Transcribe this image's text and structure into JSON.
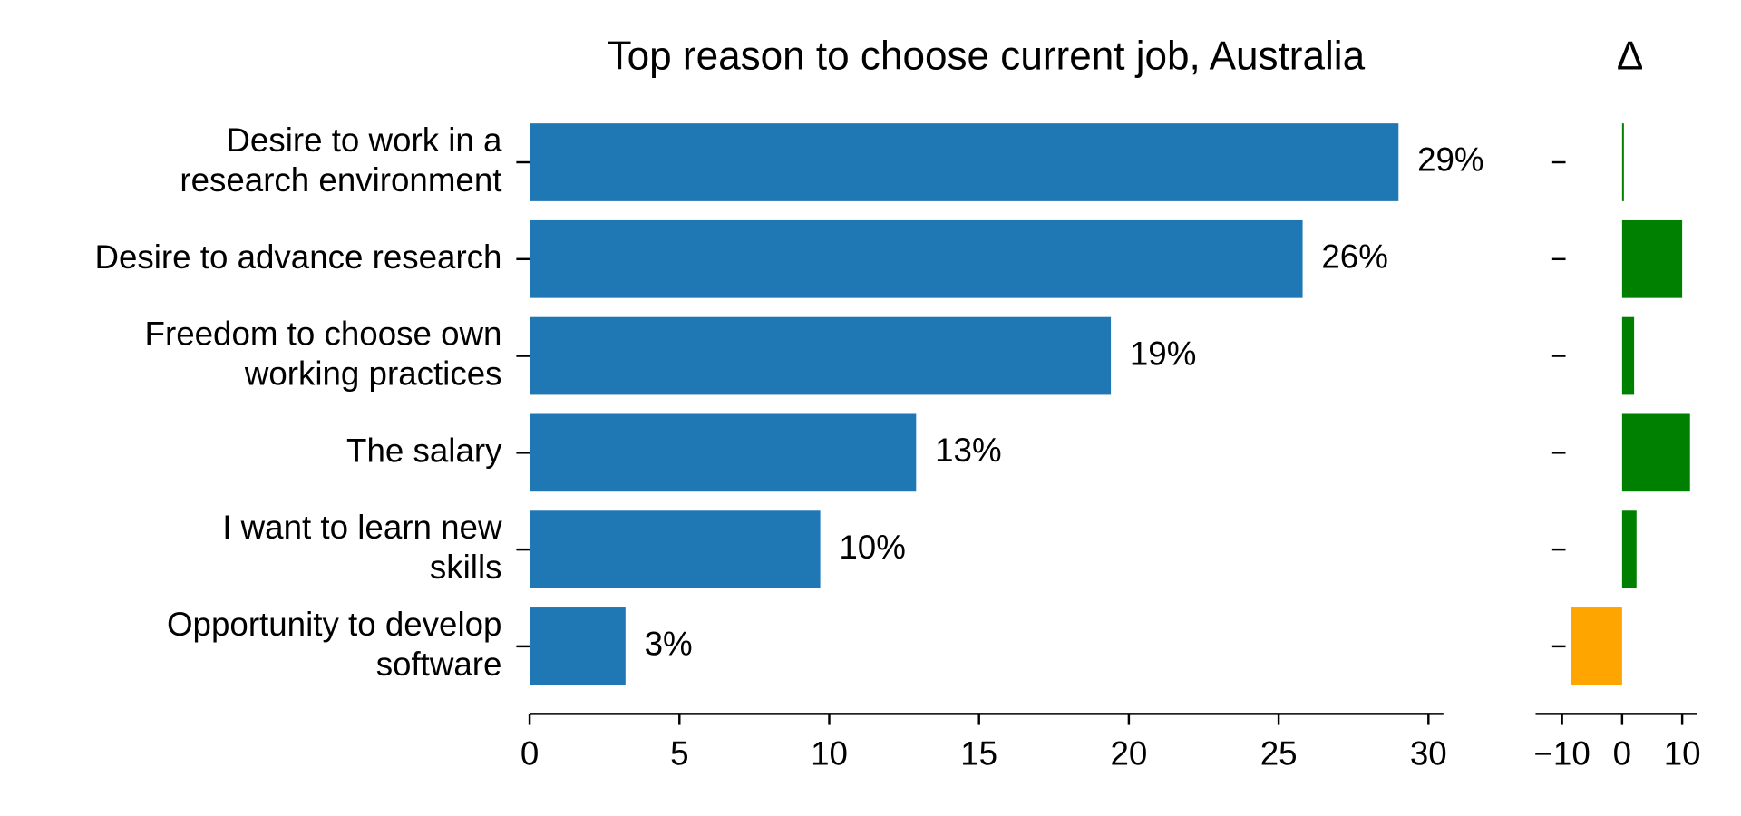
{
  "chart_data": [
    {
      "type": "bar",
      "orientation": "horizontal",
      "title": "Top reason to choose current job, Australia",
      "categories": [
        "Desire to work in a\nresearch environment",
        "Desire to advance research",
        "Freedom to choose own\nworking practices",
        "The salary",
        "I want to learn new\nskills",
        "Opportunity to develop\nsoftware"
      ],
      "values": [
        29.0,
        25.8,
        19.4,
        12.9,
        9.7,
        3.2
      ],
      "value_labels": [
        "29%",
        "26%",
        "19%",
        "13%",
        "10%",
        "3%"
      ],
      "color": "#1f77b4",
      "xlim": [
        0,
        30.5
      ],
      "xticks": [
        0,
        5,
        10,
        15,
        20,
        25,
        30
      ]
    },
    {
      "type": "bar",
      "orientation": "horizontal",
      "title": "Δ",
      "values": [
        0.3,
        10,
        2.0,
        11.3,
        2.4,
        -8.5
      ],
      "colors": [
        "#008000",
        "#008000",
        "#008000",
        "#008000",
        "#008000",
        "#ffa500"
      ],
      "xlim": [
        -14.4,
        12.4
      ],
      "xticks": [
        {
          "value": -10,
          "label": "−10"
        },
        0,
        10
      ]
    }
  ]
}
